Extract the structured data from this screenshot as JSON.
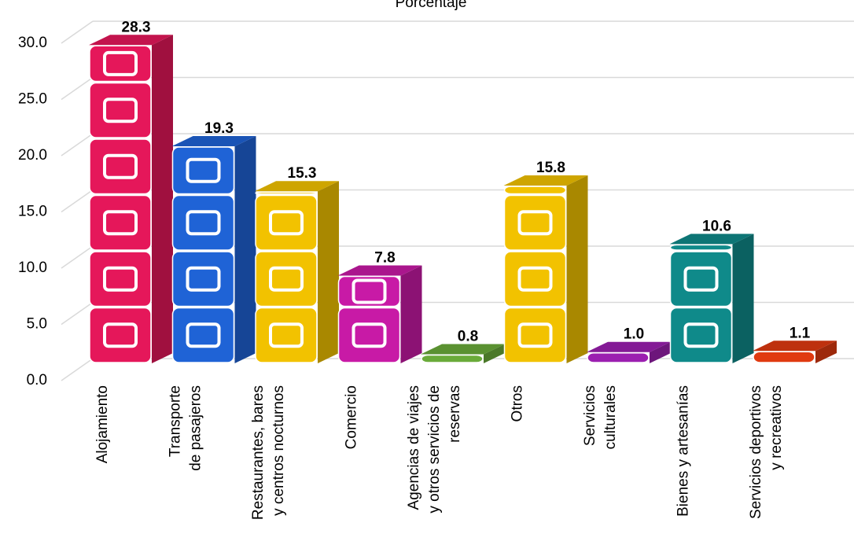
{
  "chart_data": {
    "type": "bar3d",
    "title": "Porcentaje",
    "categories": [
      "Alojamiento",
      "Transporte\nde pasajeros",
      "Restaurantes, bares\ny centros nocturnos",
      "Comercio",
      "Agencias de viajes\ny otros servicios de\nreservas",
      "Otros",
      "Servicios\nculturales",
      "Bienes y artesanías",
      "Servicios deportivos\ny recreativos"
    ],
    "values": [
      28.3,
      19.3,
      15.3,
      7.8,
      0.8,
      15.8,
      1.0,
      10.6,
      1.1
    ],
    "value_labels": [
      "28.3",
      "19.3",
      "15.3",
      "7.8",
      "0.8",
      "15.8",
      "1.0",
      "10.6",
      "1.1"
    ],
    "colors": [
      "#e5175a",
      "#1f63d6",
      "#f2c200",
      "#c81aa6",
      "#6aab3a",
      "#f2c200",
      "#9b1fb0",
      "#0f8a8a",
      "#e03a10"
    ],
    "ylim": [
      0,
      30
    ],
    "yticks": [
      {
        "value": 0,
        "label": "0.0"
      },
      {
        "value": 5,
        "label": "5.0"
      },
      {
        "value": 10,
        "label": "10.0"
      },
      {
        "value": 15,
        "label": "15.0"
      },
      {
        "value": 20,
        "label": "20.0"
      },
      {
        "value": 25,
        "label": "25.0"
      },
      {
        "value": 30,
        "label": "30.0"
      }
    ],
    "grid": true
  }
}
